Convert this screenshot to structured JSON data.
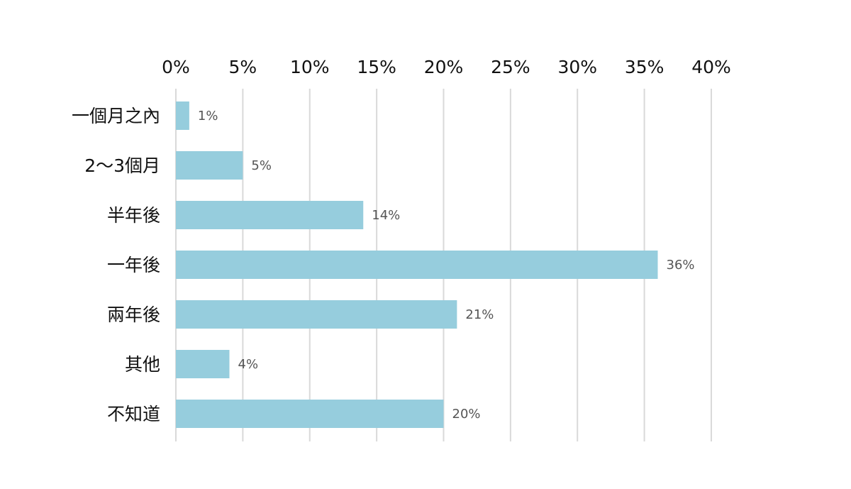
{
  "chart_data": {
    "type": "bar",
    "orientation": "horizontal",
    "categories": [
      "一個月之內",
      "2～3個月",
      "半年後",
      "一年後",
      "兩年後",
      "其他",
      "不知道"
    ],
    "values": [
      1,
      5,
      14,
      36,
      21,
      4,
      20
    ],
    "data_labels": [
      "1%",
      "5%",
      "14%",
      "36%",
      "21%",
      "4%",
      "20%"
    ],
    "x_ticks": [
      0,
      5,
      10,
      15,
      20,
      25,
      30,
      35,
      40
    ],
    "x_tick_labels": [
      "0%",
      "5%",
      "10%",
      "15%",
      "20%",
      "25%",
      "30%",
      "35%",
      "40%"
    ],
    "xlim": [
      0,
      40
    ],
    "x_axis_position": "top",
    "grid": true,
    "legend": "none",
    "title": "",
    "xlabel": "",
    "ylabel": "",
    "colors": {
      "bar": "#96cddd",
      "grid": "#d9d9d9",
      "text": "#111111",
      "data_label": "#555555"
    }
  }
}
